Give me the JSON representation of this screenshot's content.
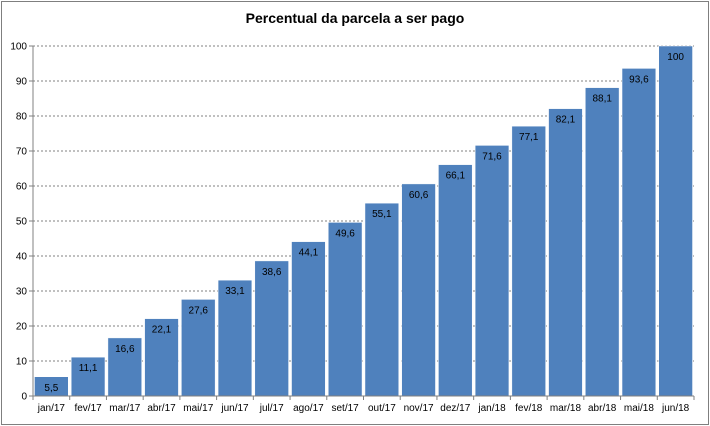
{
  "chart_data": {
    "type": "bar",
    "title": "Percentual da parcela a ser pago",
    "categories": [
      "jan/17",
      "fev/17",
      "mar/17",
      "abr/17",
      "mai/17",
      "jun/17",
      "jul/17",
      "ago/17",
      "set/17",
      "out/17",
      "nov/17",
      "dez/17",
      "jan/18",
      "fev/18",
      "mar/18",
      "abr/18",
      "mai/18",
      "jun/18"
    ],
    "values": [
      5.5,
      11.1,
      16.6,
      22.1,
      27.6,
      33.1,
      38.6,
      44.1,
      49.6,
      55.1,
      60.6,
      66.1,
      71.6,
      77.1,
      82.1,
      88.1,
      93.6,
      100
    ],
    "data_labels": [
      "5,5",
      "11,1",
      "16,6",
      "22,1",
      "27,6",
      "33,1",
      "38,6",
      "44,1",
      "49,6",
      "55,1",
      "60,6",
      "66,1",
      "71,6",
      "77,1",
      "82,1",
      "88,1",
      "93,6",
      "100"
    ],
    "ylim": [
      0,
      100
    ],
    "yticks": [
      0,
      10,
      20,
      30,
      40,
      50,
      60,
      70,
      80,
      90,
      100
    ],
    "grid": true,
    "legend": "none",
    "bar_color": "#4f81bd",
    "bar_edge_color": "#ffffff"
  }
}
